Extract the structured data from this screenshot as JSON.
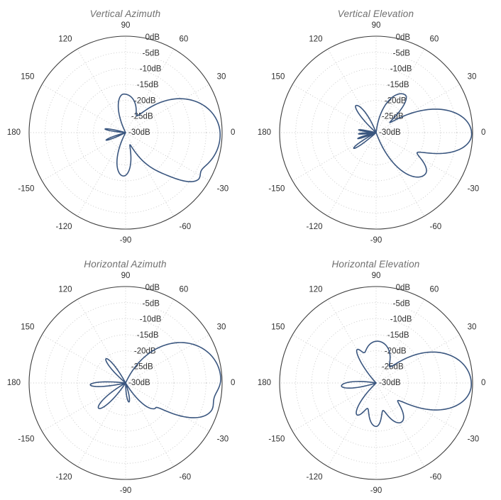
{
  "page": {
    "background": "#ffffff"
  },
  "style": {
    "curve_color": "#3a567f",
    "curve_width": 1.6,
    "grid_dot_color": "#c7c7c7",
    "outer_ring_color": "#3d3d3d",
    "tick_label_color": "#2f2f2f",
    "title_color": "#6f6f6f"
  },
  "r_axis": {
    "min_db": -30,
    "max_db": 0,
    "ring_step_db": 5,
    "ring_label_angle_deg": 80,
    "ring_labels": [
      "0dB",
      "-5dB",
      "-10dB",
      "-15dB",
      "-20dB",
      "-25dB",
      "-30dB"
    ]
  },
  "angle_ticks": [
    {
      "deg": 0,
      "label": "0"
    },
    {
      "deg": 30,
      "label": "30"
    },
    {
      "deg": 60,
      "label": "60"
    },
    {
      "deg": 90,
      "label": "90"
    },
    {
      "deg": 120,
      "label": "120"
    },
    {
      "deg": 150,
      "label": "150"
    },
    {
      "deg": 180,
      "label": "180"
    },
    {
      "deg": -150,
      "label": "-150"
    },
    {
      "deg": -120,
      "label": "-120"
    },
    {
      "deg": -90,
      "label": "-90"
    },
    {
      "deg": -60,
      "label": "-60"
    },
    {
      "deg": -30,
      "label": "-30"
    }
  ],
  "chart_data": [
    {
      "type": "line",
      "projection": "polar",
      "title": "Vertical Azimuth",
      "units": "dB",
      "r_range_db": [
        -30,
        0
      ],
      "series_model": "gain_dB(theta) = clamp(10*log10(sum_i 10^(peak_db_i/10) * exp(-(dTheta_i/sigma_i)^2)), -30, 0); sigma side-dependent (ccw/cw of lobe axis)",
      "lobes": [
        {
          "angle_deg": -2,
          "peak_db": -0.6,
          "sigma_ccw_deg": 23,
          "sigma_cw_deg": 27
        },
        {
          "angle_deg": -33,
          "peak_db": -6.0,
          "sigma_ccw_deg": 5,
          "sigma_cw_deg": 7
        },
        {
          "angle_deg": -93,
          "peak_db": -16.5,
          "sigma_ccw_deg": 13,
          "sigma_cw_deg": 14
        },
        {
          "angle_deg": 93,
          "peak_db": -18.0,
          "sigma_ccw_deg": 14,
          "sigma_cw_deg": 28
        },
        {
          "angle_deg": 170,
          "peak_db": -23.5,
          "sigma_ccw_deg": 4.5,
          "sigma_cw_deg": 4.5
        },
        {
          "angle_deg": 201,
          "peak_db": -23.5,
          "sigma_ccw_deg": 4.5,
          "sigma_cw_deg": 4.5
        }
      ]
    },
    {
      "type": "line",
      "projection": "polar",
      "title": "Vertical Elevation",
      "units": "dB",
      "r_range_db": [
        -30,
        0
      ],
      "series_model": "gain_dB(theta) = clamp(10*log10(sum_i 10^(peak_db_i/10) * exp(-(dTheta_i/sigma_i)^2)), -30, 0); sigma side-dependent (ccw/cw of lobe axis)",
      "lobes": [
        {
          "angle_deg": -1,
          "peak_db": -0.3,
          "sigma_ccw_deg": 15,
          "sigma_cw_deg": 12
        },
        {
          "angle_deg": 52,
          "peak_db": -15.2,
          "sigma_ccw_deg": 17,
          "sigma_cw_deg": 9
        },
        {
          "angle_deg": -40,
          "peak_db": -10.0,
          "sigma_ccw_deg": 10,
          "sigma_cw_deg": 14
        },
        {
          "angle_deg": 127,
          "peak_db": -19.5,
          "sigma_ccw_deg": 7,
          "sigma_cw_deg": 10
        },
        {
          "angle_deg": 171,
          "peak_db": -24.5,
          "sigma_ccw_deg": 4,
          "sigma_cw_deg": 4
        },
        {
          "angle_deg": 184,
          "peak_db": -24.5,
          "sigma_ccw_deg": 4,
          "sigma_cw_deg": 4
        },
        {
          "angle_deg": 198,
          "peak_db": -24.0,
          "sigma_ccw_deg": 4,
          "sigma_cw_deg": 4
        },
        {
          "angle_deg": 215,
          "peak_db": -21.5,
          "sigma_ccw_deg": 5,
          "sigma_cw_deg": 5
        }
      ]
    },
    {
      "type": "line",
      "projection": "polar",
      "title": "Horizontal Azimuth",
      "units": "dB",
      "r_range_db": [
        -30,
        0
      ],
      "series_model": "gain_dB(theta) = clamp(10*log10(sum_i 10^(peak_db_i/10) * exp(-(dTheta_i/sigma_i)^2)), -30, 0); sigma side-dependent (ccw/cw of lobe axis)",
      "lobes": [
        {
          "angle_deg": 3,
          "peak_db": -0.4,
          "sigma_ccw_deg": 24,
          "sigma_cw_deg": 15
        },
        {
          "angle_deg": -18,
          "peak_db": -3.0,
          "sigma_ccw_deg": 8,
          "sigma_cw_deg": 10
        },
        {
          "angle_deg": -42,
          "peak_db": -18.5,
          "sigma_ccw_deg": 5,
          "sigma_cw_deg": 10
        },
        {
          "angle_deg": -80,
          "peak_db": -24.0,
          "sigma_ccw_deg": 8,
          "sigma_cw_deg": 8
        },
        {
          "angle_deg": 129,
          "peak_db": -20.3,
          "sigma_ccw_deg": 7,
          "sigma_cw_deg": 7
        },
        {
          "angle_deg": 183,
          "peak_db": -19.0,
          "sigma_ccw_deg": 6,
          "sigma_cw_deg": 6
        },
        {
          "angle_deg": -137,
          "peak_db": -18.5,
          "sigma_ccw_deg": 8,
          "sigma_cw_deg": 8
        }
      ]
    },
    {
      "type": "line",
      "projection": "polar",
      "title": "Horizontal Elevation",
      "units": "dB",
      "r_range_db": [
        -30,
        0
      ],
      "series_model": "gain_dB(theta) = clamp(10*log10(sum_i 10^(peak_db_i/10) * exp(-(dTheta_i/sigma_i)^2)), -30, 0); sigma side-dependent (ccw/cw of lobe axis)",
      "lobes": [
        {
          "angle_deg": -1,
          "peak_db": -0.4,
          "sigma_ccw_deg": 20,
          "sigma_cw_deg": 16
        },
        {
          "angle_deg": 88,
          "peak_db": -17.0,
          "sigma_ccw_deg": 26,
          "sigma_cw_deg": 28
        },
        {
          "angle_deg": 120,
          "peak_db": -19.5,
          "sigma_ccw_deg": 6,
          "sigma_cw_deg": 6
        },
        {
          "angle_deg": 185,
          "peak_db": -19.2,
          "sigma_ccw_deg": 8,
          "sigma_cw_deg": 9
        },
        {
          "angle_deg": -57,
          "peak_db": -15.5,
          "sigma_ccw_deg": 13,
          "sigma_cw_deg": 14
        },
        {
          "angle_deg": -90,
          "peak_db": -16.5,
          "sigma_ccw_deg": 10,
          "sigma_cw_deg": 14
        },
        {
          "angle_deg": -121,
          "peak_db": -18.5,
          "sigma_ccw_deg": 10,
          "sigma_cw_deg": 9
        }
      ]
    }
  ]
}
